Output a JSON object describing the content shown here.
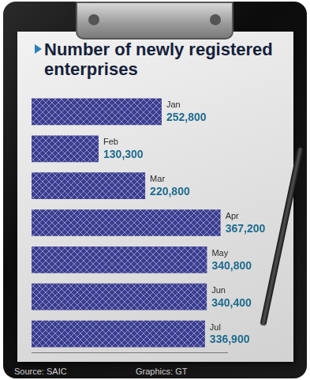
{
  "chart_data": {
    "type": "bar",
    "orientation": "horizontal",
    "title": "Number of newly registered enterprises",
    "categories": [
      "Jan",
      "Feb",
      "Mar",
      "Apr",
      "May",
      "Jun",
      "Jul"
    ],
    "values": [
      252800,
      130300,
      220800,
      367200,
      340800,
      340400,
      336900
    ],
    "value_labels": [
      "252,800",
      "130,300",
      "220,800",
      "367,200",
      "340,800",
      "340,400",
      "336,900"
    ],
    "data_labels": true,
    "tick_labels": false,
    "grid": false,
    "color": "#3a3d8f",
    "xlim": [
      0,
      380000
    ],
    "annotations": [
      "Source: SAIC",
      "Graphics: GT"
    ]
  }
}
